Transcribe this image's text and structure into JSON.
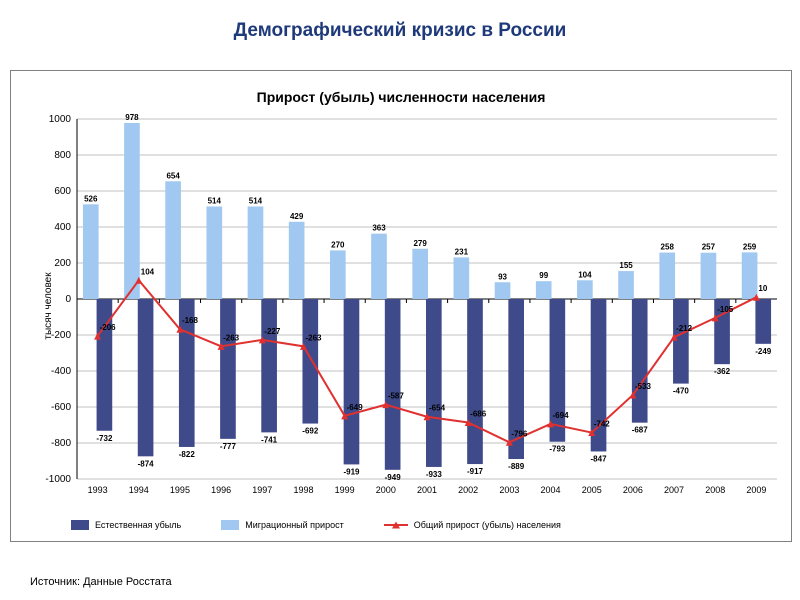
{
  "title": "Демографический кризис в России",
  "chart": {
    "type": "bar+line",
    "title": "Прирост (убыль) численности населения",
    "title_fontsize": 14,
    "yaxis_title": "тысяч человек",
    "yaxis_title_fontsize": 10,
    "background_color": "#ffffff",
    "grid_color": "#c0c0c0",
    "axis_color": "#000000",
    "ylim": [
      -1000,
      1000
    ],
    "ytick_step": 200,
    "yticks": [
      -1000,
      -800,
      -600,
      -400,
      -200,
      0,
      200,
      400,
      600,
      800,
      1000
    ],
    "categories": [
      "1993",
      "1994",
      "1995",
      "1996",
      "1997",
      "1998",
      "1999",
      "2000",
      "2001",
      "2002",
      "2003",
      "2004",
      "2005",
      "2006",
      "2007",
      "2008",
      "2009"
    ],
    "series_natural": {
      "name": "Естественная убыль",
      "color": "#3f4a8a",
      "values": [
        -732,
        -874,
        -822,
        -777,
        -741,
        -692,
        -919,
        -949,
        -933,
        -917,
        -889,
        -793,
        -847,
        -687,
        -470,
        -362,
        -249
      ],
      "labels": [
        "-732",
        "-874",
        "-822",
        "-777",
        "-741",
        "-692",
        "-919",
        "-949",
        "-933",
        "-917",
        "-889",
        "-793",
        "-847",
        "-687",
        "-470",
        "-362",
        "-249"
      ]
    },
    "series_migration": {
      "name": "Миграционный прирост",
      "color": "#a0c8f0",
      "values": [
        526,
        978,
        654,
        514,
        514,
        429,
        270,
        363,
        279,
        231,
        93,
        99,
        104,
        155,
        258,
        257,
        259
      ],
      "labels": [
        "526",
        "978",
        "654",
        "514",
        "514",
        "429",
        "270",
        "363",
        "279",
        "231",
        "93",
        "99",
        "104",
        "155",
        "258",
        "257",
        "259"
      ]
    },
    "series_total": {
      "name": "Общий прирост (убыль) населения",
      "color": "#e03030",
      "line_width": 2,
      "marker": "triangle",
      "marker_size": 7,
      "values": [
        -206,
        104,
        -168,
        -263,
        -227,
        -263,
        -649,
        -587,
        -654,
        -686,
        -796,
        -694,
        -742,
        -533,
        -212,
        -105,
        10
      ],
      "labels": [
        "-206",
        "104",
        "-168",
        "-263",
        "-227",
        "-263",
        "-649",
        "-587",
        "-654",
        "-686",
        "-796",
        "-694",
        "-742",
        "-533",
        "-212",
        "-105",
        "10"
      ]
    },
    "bar_width_ratio": 0.38,
    "label_fontsize": 8,
    "xtick_fontsize": 9,
    "ytick_fontsize": 10
  },
  "legend": {
    "natural": "Естественная убыль",
    "migration": "Миграционный прирост",
    "total": "Общий прирост (убыль) населения"
  },
  "source": "Источник: Данные Росстата",
  "title_fontsize": 19,
  "title_color": "#1f3a7a"
}
